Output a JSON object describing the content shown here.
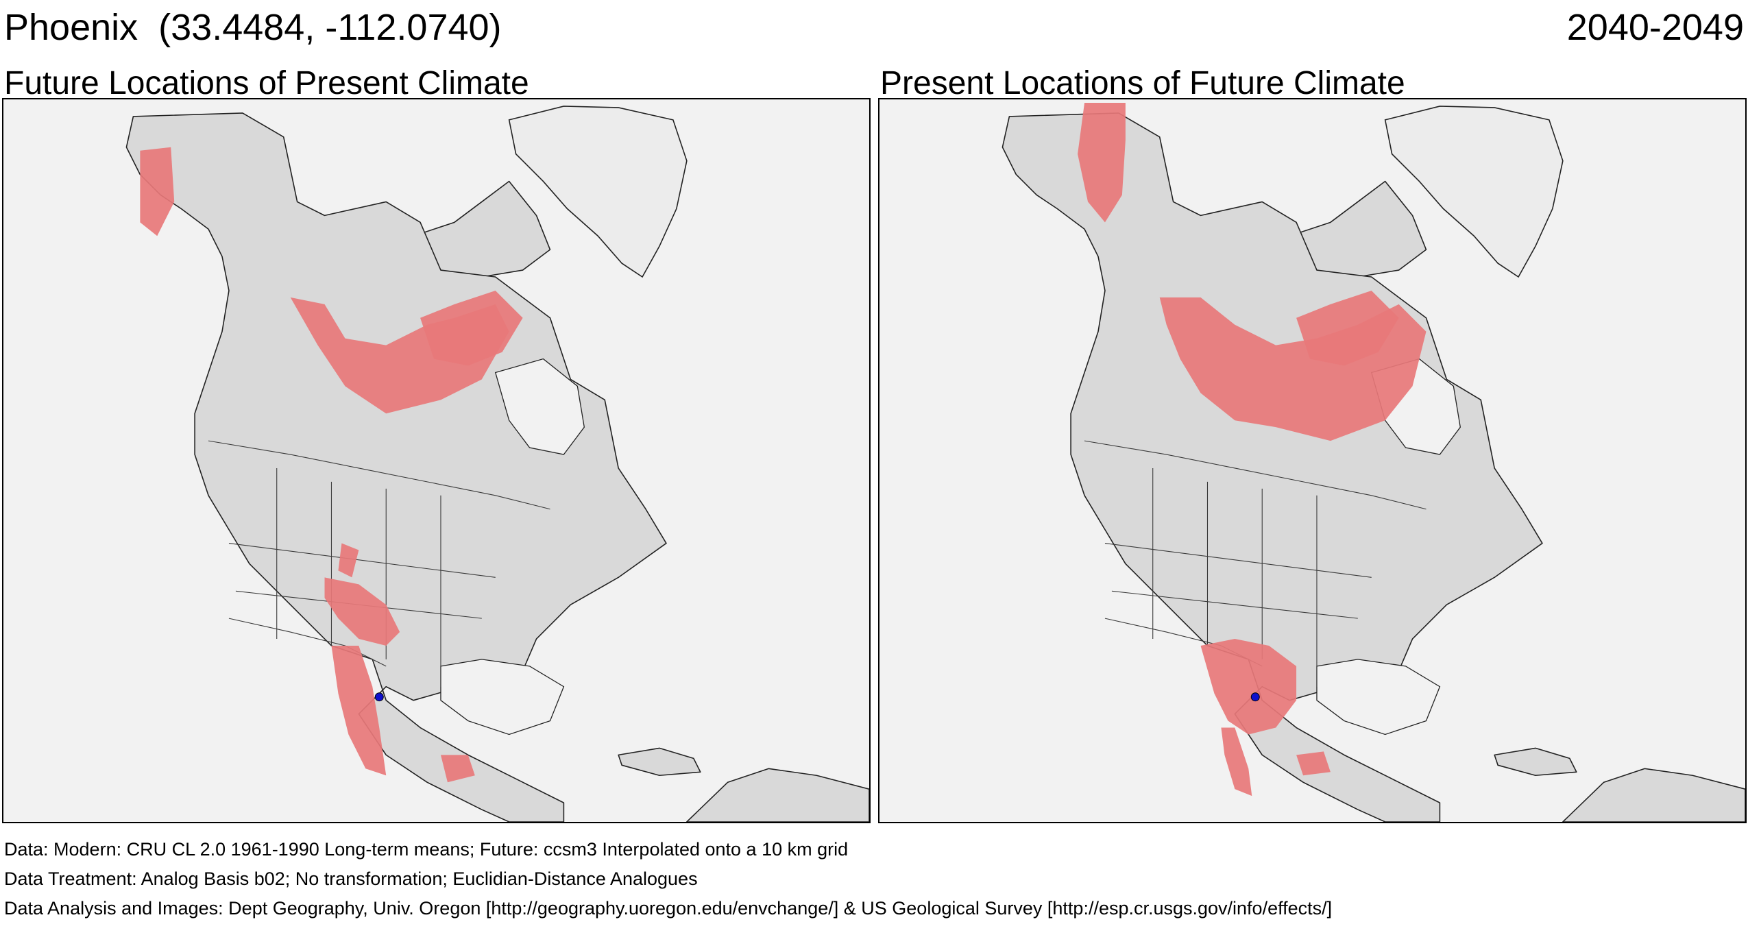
{
  "header": {
    "location": "Phoenix  (33.4484, -112.0740)",
    "period": "2040-2049"
  },
  "maps": [
    {
      "title": "Future Locations of Present Climate",
      "analog_color": "#e8787a",
      "site_color": "#1010cc"
    },
    {
      "title": "Present Locations of Future Climate",
      "analog_color": "#e8787a",
      "site_color": "#1010cc"
    }
  ],
  "footer": {
    "data": "Data:  Modern: CRU CL 2.0 1961-1990 Long-term means; Future: ccsm3 Interpolated onto a 10 km grid",
    "treatment": "Data Treatment:  Analog Basis b02; No transformation; Euclidian-Distance Analogues",
    "analysis": "Data Analysis and Images:  Dept Geography, Univ. Oregon [http://geography.uoregon.edu/envchange/] & US Geological Survey [http://esp.cr.usgs.gov/info/effects/]"
  }
}
